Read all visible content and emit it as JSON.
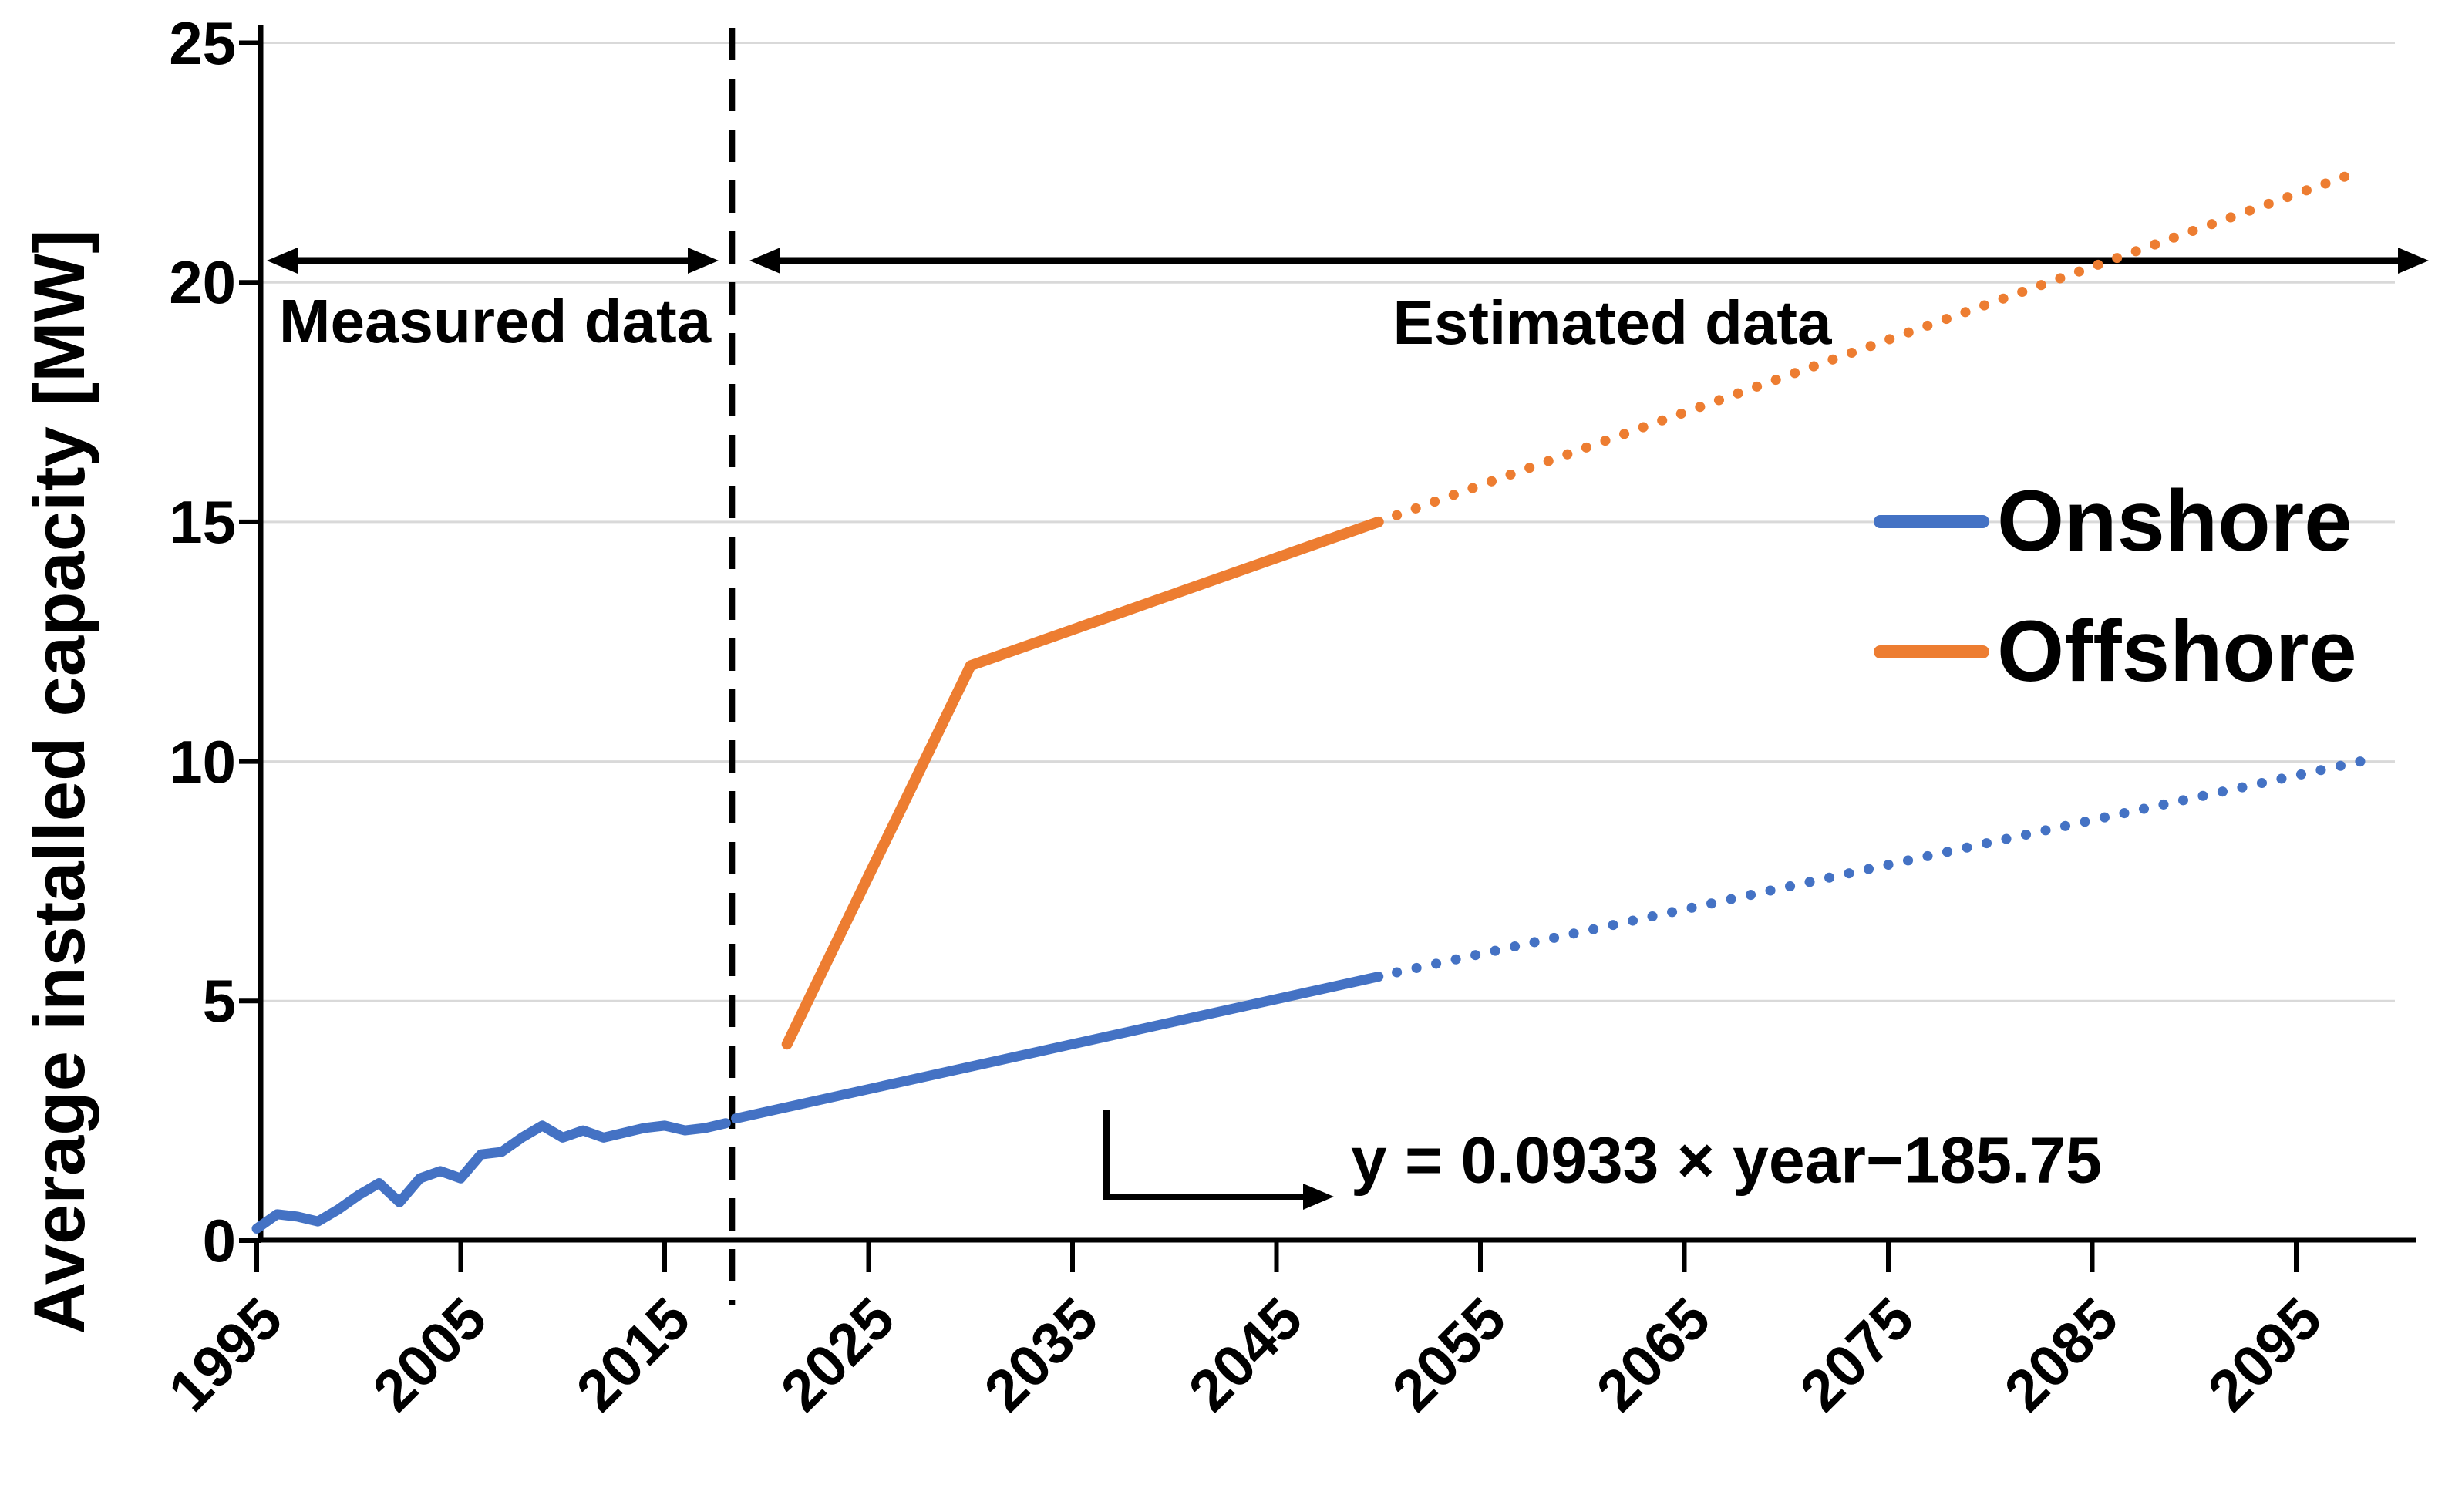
{
  "figure": {
    "ylabel": "Average installed capacity [MW]",
    "annotations": {
      "measured": "Measured data",
      "estimated": "Estimated data",
      "equation": "y = 0.0933 × year−185.75"
    },
    "legend": {
      "items": [
        {
          "label": "Onshore",
          "color": "#4472C4"
        },
        {
          "label": "Offshore",
          "color": "#ED7D31"
        }
      ]
    }
  },
  "chart_data": {
    "type": "line",
    "title": "",
    "xlabel": "",
    "ylabel": "Average installed capacity [MW]",
    "xlim": [
      1995,
      2101
    ],
    "ylim": [
      0,
      25
    ],
    "x_ticks": [
      1995,
      2005,
      2015,
      2025,
      2035,
      2045,
      2055,
      2065,
      2075,
      2085,
      2095
    ],
    "y_ticks": [
      0,
      5,
      10,
      15,
      20,
      25
    ],
    "grid": "horizontal",
    "legend_position": "right",
    "divider_year": 2018.3,
    "measured_region": {
      "label": "Measured data",
      "from": 1995,
      "to": 2018.3
    },
    "estimated_region": {
      "label": "Estimated data",
      "from": 2018.3,
      "to": 2101
    },
    "trend_equation": "y = 0.0933 × year−185.75",
    "colors": {
      "axis": "#000000",
      "grid": "#D9D9D9",
      "divider": "#000000",
      "arrow": "#000000"
    },
    "series": [
      {
        "name": "Onshore (measured)",
        "color": "#4472C4",
        "style": "solid",
        "width": 13,
        "points": [
          [
            1995,
            0.25
          ],
          [
            1996,
            0.55
          ],
          [
            1997,
            0.5
          ],
          [
            1998,
            0.4
          ],
          [
            1999,
            0.65
          ],
          [
            2000,
            0.95
          ],
          [
            2001,
            1.2
          ],
          [
            2002,
            0.8
          ],
          [
            2003,
            1.3
          ],
          [
            2004,
            1.45
          ],
          [
            2005,
            1.3
          ],
          [
            2006,
            1.8
          ],
          [
            2007,
            1.85
          ],
          [
            2008,
            2.15
          ],
          [
            2009,
            2.4
          ],
          [
            2010,
            2.15
          ],
          [
            2011,
            2.3
          ],
          [
            2012,
            2.15
          ],
          [
            2013,
            2.25
          ],
          [
            2014,
            2.35
          ],
          [
            2015,
            2.4
          ],
          [
            2016,
            2.3
          ],
          [
            2017,
            2.35
          ],
          [
            2018,
            2.45
          ]
        ]
      },
      {
        "name": "Onshore (estimated, solid)",
        "color": "#4472C4",
        "style": "solid",
        "width": 13,
        "points": [
          [
            2018.5,
            2.55
          ],
          [
            2050,
            5.51
          ]
        ]
      },
      {
        "name": "Onshore (estimated, dotted)",
        "color": "#4472C4",
        "style": "dotted",
        "width": 13,
        "points": [
          [
            2050.9,
            5.6
          ],
          [
            2099,
            10.08
          ]
        ]
      },
      {
        "name": "Offshore (estimated, solid)",
        "color": "#ED7D31",
        "style": "solid",
        "width": 14,
        "points": [
          [
            2021,
            4.1
          ],
          [
            2030,
            12
          ],
          [
            2050,
            15
          ]
        ]
      },
      {
        "name": "Offshore (estimated, dotted)",
        "color": "#ED7D31",
        "style": "dotted",
        "width": 13,
        "points": [
          [
            2050.9,
            15.14
          ],
          [
            2098,
            22.3
          ]
        ]
      }
    ]
  }
}
